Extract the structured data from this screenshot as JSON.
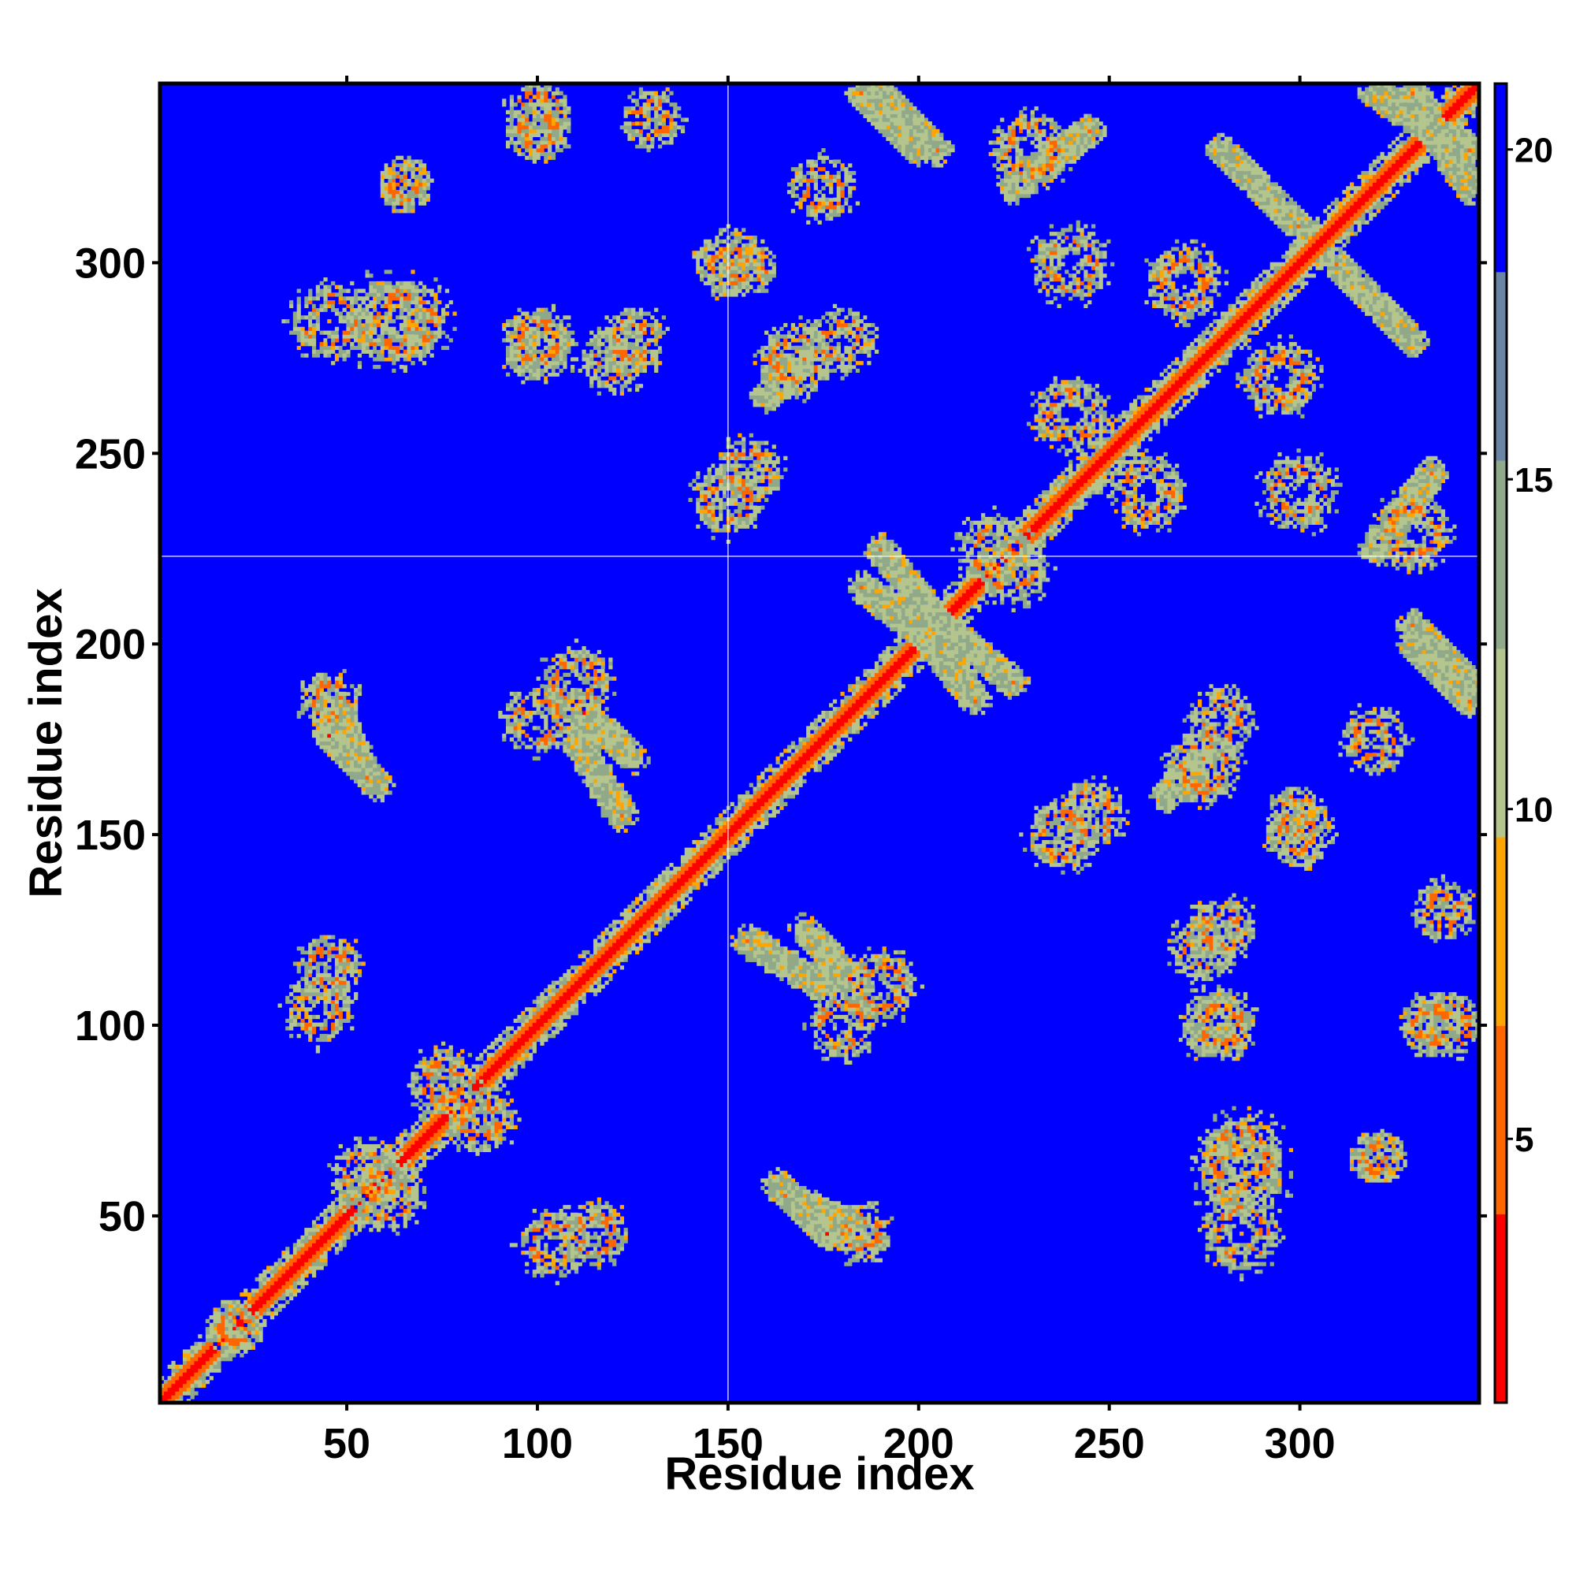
{
  "chart_data": {
    "type": "heatmap",
    "title": "",
    "xlabel": "Residue index",
    "ylabel": "Residue index",
    "xlim": [
      1,
      347
    ],
    "ylim": [
      1,
      347
    ],
    "x_ticks": [
      50,
      100,
      150,
      200,
      250,
      300
    ],
    "y_ticks": [
      50,
      100,
      150,
      200,
      250,
      300
    ],
    "x_tick_labels": [
      "50",
      "100",
      "150",
      "200",
      "250",
      "300"
    ],
    "y_tick_labels": [
      "50",
      "100",
      "150",
      "200",
      "250",
      "300"
    ],
    "grid": false,
    "reference_lines": {
      "x": 150,
      "y": 223,
      "color": "#ffffff"
    },
    "colorbar": {
      "position": "right",
      "range": [
        1,
        21
      ],
      "ticks": [
        5,
        10,
        15,
        20
      ],
      "tick_labels": [
        "5",
        "10",
        "15",
        "20"
      ],
      "colors": [
        "#ff0000",
        "#ff6600",
        "#ffa500",
        "#b5c58e",
        "#8fa98a",
        "#6a84a5",
        "#0000ff"
      ]
    },
    "background_value": 21,
    "colors": {
      "far": "#0000ff",
      "mid": "#9bbf96",
      "near": "#ff0000"
    },
    "diagonal": {
      "from": 1,
      "to": 347,
      "value": 2
    },
    "contact_bands": [
      {
        "a": [
          170,
          182
        ],
        "b": [
          112,
          125
        ],
        "direction": "anti"
      },
      {
        "a": [
          163,
          176
        ],
        "b": [
          45,
          58
        ],
        "direction": "anti"
      },
      {
        "a": [
          110,
          122
        ],
        "b": [
          155,
          175
        ],
        "direction": "anti"
      },
      {
        "a": [
          45,
          55
        ],
        "b": [
          165,
          185
        ],
        "direction": "anti"
      },
      {
        "a": [
          200,
          215
        ],
        "b": [
          185,
          205
        ],
        "direction": "anti"
      },
      {
        "a": [
          200,
          225
        ],
        "b": [
          190,
          210
        ],
        "direction": "anti"
      },
      {
        "a": [
          320,
          345
        ],
        "b": [
          330,
          345
        ],
        "direction": "anti"
      },
      {
        "a": [
          190,
          205
        ],
        "b": [
          330,
          345
        ],
        "direction": "anti"
      },
      {
        "a": [
          330,
          345
        ],
        "b": [
          185,
          200
        ],
        "direction": "anti"
      },
      {
        "a": [
          225,
          245
        ],
        "b": [
          320,
          335
        ],
        "direction": "parallel"
      },
      {
        "a": [
          280,
          300
        ],
        "b": [
          310,
          330
        ],
        "direction": "anti"
      },
      {
        "a": [
          265,
          275
        ],
        "b": [
          160,
          170
        ],
        "direction": "parallel"
      }
    ],
    "contact_clusters": [
      {
        "x": 104,
        "y": 42,
        "r": 9
      },
      {
        "x": 185,
        "y": 45,
        "r": 7
      },
      {
        "x": 285,
        "y": 60,
        "r": 12
      },
      {
        "x": 322,
        "y": 65,
        "r": 5
      },
      {
        "x": 278,
        "y": 100,
        "r": 9
      },
      {
        "x": 340,
        "y": 100,
        "r": 8
      },
      {
        "x": 245,
        "y": 155,
        "r": 9
      },
      {
        "x": 300,
        "y": 155,
        "r": 7
      },
      {
        "x": 275,
        "y": 120,
        "r": 8
      },
      {
        "x": 45,
        "y": 285,
        "r": 10
      },
      {
        "x": 65,
        "y": 285,
        "r": 12
      },
      {
        "x": 100,
        "y": 280,
        "r": 8
      },
      {
        "x": 125,
        "y": 280,
        "r": 8
      },
      {
        "x": 168,
        "y": 275,
        "r": 10
      },
      {
        "x": 150,
        "y": 238,
        "r": 9
      },
      {
        "x": 150,
        "y": 300,
        "r": 8
      },
      {
        "x": 100,
        "y": 335,
        "r": 7
      },
      {
        "x": 130,
        "y": 338,
        "r": 7
      },
      {
        "x": 65,
        "y": 320,
        "r": 5
      },
      {
        "x": 45,
        "y": 115,
        "r": 8
      },
      {
        "x": 85,
        "y": 75,
        "r": 8
      },
      {
        "x": 55,
        "y": 60,
        "r": 9
      },
      {
        "x": 110,
        "y": 190,
        "r": 9
      },
      {
        "x": 20,
        "y": 20,
        "r": 6
      },
      {
        "x": 270,
        "y": 295,
        "r": 10
      },
      {
        "x": 240,
        "y": 260,
        "r": 10
      },
      {
        "x": 225,
        "y": 220,
        "r": 9
      },
      {
        "x": 300,
        "y": 240,
        "r": 10
      },
      {
        "x": 230,
        "y": 330,
        "r": 10
      },
      {
        "x": 280,
        "y": 180,
        "r": 8
      },
      {
        "x": 180,
        "y": 100,
        "r": 9
      },
      {
        "x": 320,
        "y": 175,
        "r": 8
      }
    ]
  }
}
